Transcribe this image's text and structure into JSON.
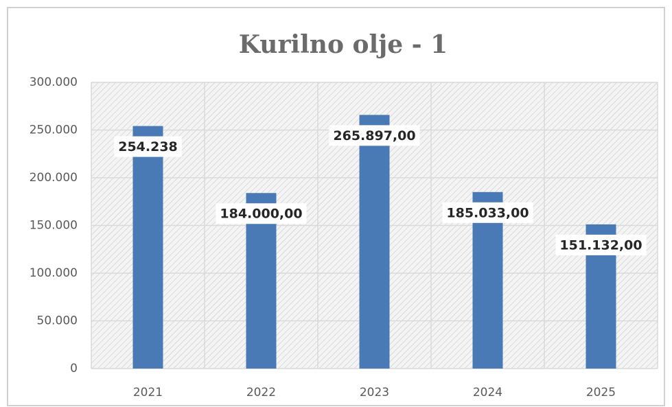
{
  "chart_data": {
    "type": "bar",
    "title": "Kurilno olje - 1",
    "categories": [
      "2021",
      "2022",
      "2023",
      "2024",
      "2025"
    ],
    "values": [
      254238,
      184000,
      265897,
      185033,
      151132
    ],
    "value_labels": [
      "254.238",
      "184.000,00",
      "265.897,00",
      "185.033,00",
      "151.132,00"
    ],
    "color": "#4a7ab5",
    "ylim": [
      0,
      300000
    ],
    "yticks": [
      0,
      {
        "value": 50000,
        "label": "50.000"
      },
      {
        "value": 100000,
        "label": "100.000"
      },
      {
        "value": 150000,
        "label": "150.000"
      },
      {
        "value": 200000,
        "label": "200.000"
      },
      {
        "value": 250000,
        "label": "250.000"
      },
      {
        "value": 300000,
        "label": "300.000"
      }
    ],
    "grid": true
  }
}
